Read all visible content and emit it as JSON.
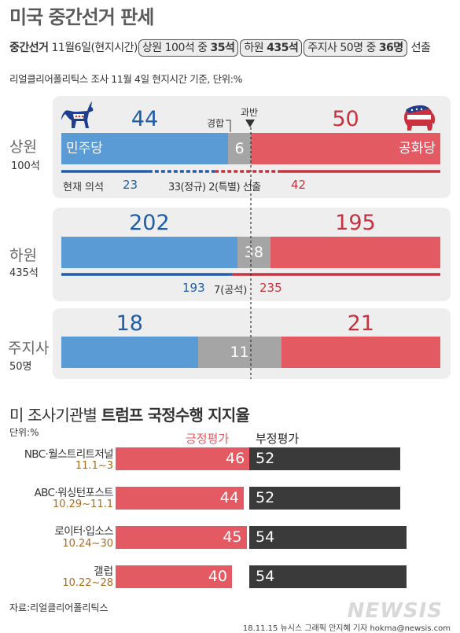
{
  "header": {
    "title": "미국 중간선거 판세",
    "subtitle_lead": "중간선거",
    "subtitle_date": "11월6일(현지시간)",
    "pill_senate_prefix": "상원 100석 중",
    "pill_senate_value": "35석",
    "pill_house_prefix": "하원",
    "pill_house_value": "435석",
    "pill_gov_prefix": "주지사 50명 중",
    "pill_gov_value": "36명",
    "subtitle_tail": "선출",
    "source_note": "리얼클리어폴리틱스 조사 11월 4일 현지시간 기준, 단위:%"
  },
  "colors": {
    "dem": "#5b9bd5",
    "rep": "#e45a63",
    "tossup": "#a5a5a5",
    "dem_text": "#1e5ea8",
    "rep_text": "#c8323f",
    "approve": "#e45a63",
    "disapprove": "#3a3a3a"
  },
  "labels": {
    "tossup": "경합",
    "majority": "과반",
    "dem_party": "민주당",
    "rep_party": "공화당",
    "current_seats": "현재 의석"
  },
  "icons": [
    "donkey-icon",
    "elephant-icon",
    "down-triangle-icon"
  ],
  "chart_data": [
    {
      "type": "bar",
      "title": "미국 중간선거 판세",
      "majority_line": 50,
      "groups": [
        {
          "name": "상원",
          "sub": "100석",
          "dem": 44,
          "tossup": 6,
          "rep": 50,
          "total": 100,
          "current": {
            "dem": "23",
            "middle": "33(정규) 2(특별) 선출",
            "rep": "42",
            "dem_solid": 23,
            "contested": 35,
            "rep_solid": 42
          }
        },
        {
          "name": "하원",
          "sub": "435석",
          "dem": 202,
          "tossup": 38,
          "rep": 195,
          "total": 435,
          "current": {
            "dem": "193",
            "middle": "7(공석)",
            "rep": "235",
            "dem_solid": 193,
            "contested": 7,
            "rep_solid": 235
          }
        },
        {
          "name": "주지사",
          "sub": "50명",
          "dem": 18,
          "tossup": 11,
          "rep": 21,
          "total": 50
        }
      ]
    },
    {
      "type": "bar",
      "title": "미 조사기관별 트럼프 국정수행 지지율",
      "title_plain": "미 조사기관별",
      "title_bold": "트럼프 국정수행 지지율",
      "unit": "단위:%",
      "series": [
        {
          "name": "긍정평가",
          "values": [
            46,
            44,
            45,
            40
          ]
        },
        {
          "name": "부정평가",
          "values": [
            52,
            52,
            54,
            54
          ]
        }
      ],
      "categories": [
        {
          "name": "NBC·월스트리트저널",
          "dates": "11.1~3"
        },
        {
          "name": "ABC·워싱턴포스트",
          "dates": "10.29~11.1"
        },
        {
          "name": "로이터·입소스",
          "dates": "10.24~30"
        },
        {
          "name": "갤럽",
          "dates": "10.22~28"
        }
      ]
    }
  ],
  "footer": {
    "source": "자료:리얼클리어폴리틱스",
    "logo": "NEWSIS",
    "credit": "18.11.15 뉴시스 그래픽 안지혜 기자 hokma@newsis.com"
  }
}
